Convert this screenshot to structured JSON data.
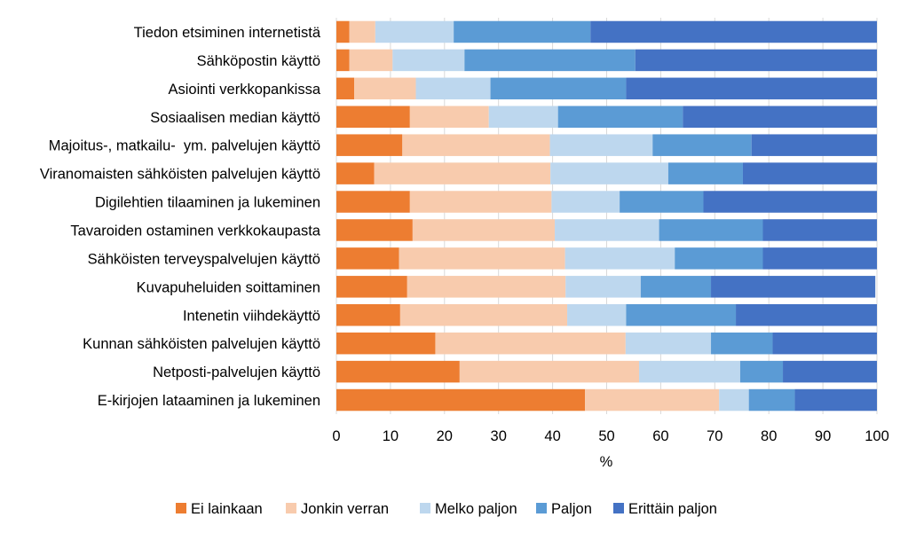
{
  "chart_data": {
    "type": "bar",
    "orientation": "horizontal",
    "stacked": true,
    "xlabel": "%",
    "xlim": [
      0,
      100
    ],
    "xticks": [
      0,
      10,
      20,
      30,
      40,
      50,
      60,
      70,
      80,
      90,
      100
    ],
    "grid": true,
    "legend_position": "bottom",
    "categories": [
      "Tiedon etsiminen internetistä",
      "Sähköpostin käyttö",
      "Asiointi verkkopankissa",
      "Sosiaalisen median käyttö",
      "Majoitus-, matkailu-  ym. palvelujen käyttö",
      "Viranomaisten sähköisten palvelujen käyttö",
      "Digilehtien tilaaminen ja lukeminen",
      "Tavaroiden ostaminen verkkokaupasta",
      "Sähköisten terveyspalvelujen käyttö",
      "Kuvapuheluiden soittaminen",
      "Intenetin viihdekäyttö",
      "Kunnan sähköisten palvelujen käyttö",
      "Netposti-palvelujen käyttö",
      "E-kirjojen lataaminen ja lukeminen"
    ],
    "series": [
      {
        "name": "Ei lainkaan",
        "color": "#ED7D31",
        "values": [
          2.4,
          2.4,
          3.3,
          13.6,
          12.2,
          7.0,
          13.6,
          14.1,
          11.6,
          13.1,
          11.8,
          18.3,
          22.8,
          46.0
        ]
      },
      {
        "name": "Jonkin verran",
        "color": "#F8CBAD",
        "values": [
          4.8,
          8.0,
          11.4,
          14.6,
          27.3,
          32.6,
          26.2,
          26.3,
          30.7,
          29.3,
          30.9,
          35.2,
          33.2,
          24.8
        ]
      },
      {
        "name": "Melko paljon",
        "color": "#BDD7EE",
        "values": [
          14.5,
          13.3,
          13.8,
          12.8,
          19.0,
          21.8,
          12.6,
          19.3,
          20.3,
          13.9,
          10.9,
          15.8,
          18.7,
          5.5
        ]
      },
      {
        "name": "Paljon",
        "color": "#5B9BD5",
        "values": [
          25.3,
          31.6,
          25.1,
          23.1,
          18.3,
          13.8,
          15.5,
          19.2,
          16.3,
          13.0,
          20.3,
          11.4,
          7.9,
          8.5
        ]
      },
      {
        "name": "Erittäin paljon",
        "color": "#4472C4",
        "values": [
          53.0,
          44.7,
          46.4,
          35.9,
          23.2,
          24.8,
          32.1,
          21.1,
          21.1,
          30.4,
          26.1,
          19.3,
          17.4,
          15.2
        ]
      }
    ]
  }
}
